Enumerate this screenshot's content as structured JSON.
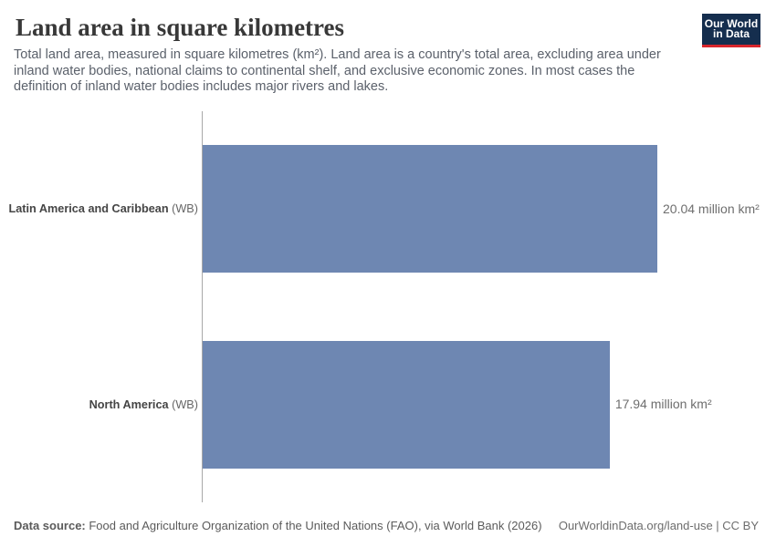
{
  "header": {
    "title": "Land area in square kilometres",
    "subtitle_lines": [
      "Total land area, measured in square kilometres (km²). Land area is a country's total area, excluding area under",
      "inland water bodies, national claims to continental shelf, and exclusive economic zones. In most cases the",
      "definition of inland water bodies includes major rivers and lakes."
    ]
  },
  "logo": {
    "line1": "Our World",
    "line2": "in Data"
  },
  "chart_data": {
    "type": "bar",
    "orientation": "horizontal",
    "categories": [
      "Latin America and Caribbean (WB)",
      "North America (WB)"
    ],
    "values": [
      20.04,
      17.94
    ],
    "unit": "million km²",
    "series": [
      {
        "entity": "Latin America and Caribbean",
        "entity_suffix": " (WB)",
        "value": 20.04,
        "value_label": "20.04 million km²"
      },
      {
        "entity": "North America",
        "entity_suffix": " (WB)",
        "value": 17.94,
        "value_label": "17.94 million km²"
      }
    ],
    "bar_color": "#6e87b2",
    "xlim": [
      0,
      20.04
    ],
    "title": "Land area in square kilometres"
  },
  "footer": {
    "source_bold": "Data source:",
    "source_rest": " Food and Agriculture Organization of the United Nations (FAO), via World Bank (2026)",
    "link": "OurWorldinData.org/land-use | CC BY"
  }
}
